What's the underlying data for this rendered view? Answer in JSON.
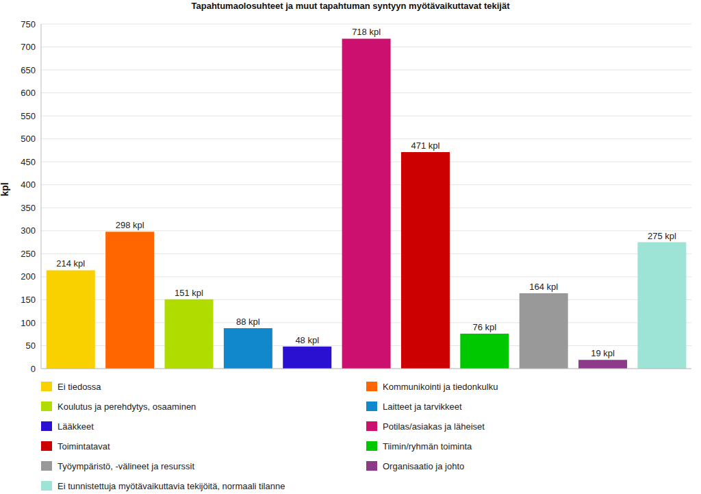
{
  "chart_data": {
    "type": "bar",
    "title": "Tapahtumaolosuhteet ja muut tapahtuman syntyyn myötävaikuttavat tekijät",
    "y_label": "kpl",
    "categories": [
      "Ei tiedossa",
      "Kommunikointi ja tiedonkulku",
      "Koulutus ja perehdytys, osaaminen",
      "Laitteet ja tarvikkeet",
      "Lääkkeet",
      "Potilas/asiakas ja läheiset",
      "Toimintatavat",
      "Tiimin/ryhmän toiminta",
      "Työympäristö, -välineet ja resurssit",
      "Organisaatio ja johto",
      "Ei tunnistettuja myötävaikuttavia tekijöitä, normaali tilanne"
    ],
    "values": [
      214,
      298,
      151,
      88,
      48,
      718,
      471,
      76,
      164,
      19,
      275
    ],
    "value_labels": [
      "214 kpl",
      "298 kpl",
      "151 kpl",
      "88 kpl",
      "48 kpl",
      "718 kpl",
      "471 kpl",
      "76 kpl",
      "164 kpl",
      "19 kpl",
      "275 kpl"
    ],
    "colors": [
      "#f9d000",
      "#ff6600",
      "#b0dc00",
      "#1188cc",
      "#2a10d0",
      "#cc1070",
      "#cc0000",
      "#00c800",
      "#999999",
      "#8e3a8a",
      "#9de3d6"
    ],
    "ylim": [
      0,
      750
    ],
    "yticks": [
      0,
      50,
      100,
      150,
      200,
      250,
      300,
      350,
      400,
      450,
      500,
      550,
      600,
      650,
      700,
      750
    ],
    "grid": true,
    "data_labels": true,
    "tick_labels": "y",
    "legend": "bottom"
  }
}
